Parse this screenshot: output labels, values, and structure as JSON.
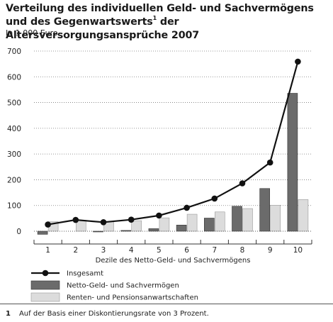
{
  "title_part1": "Verteilung des individuellen Geld- und Sachvermögens und des Gegenwartswerts",
  "title_sup": "1",
  "title_part2": " der Altersversorgungsansprüche 2007",
  "unit": "In 1 000 Euro",
  "footnote": {
    "number": "1",
    "text": "Auf der Basis einer Diskontierungsrate von 3 Prozent."
  },
  "colors": {
    "netto_bar": "#6b6b6b",
    "renten_bar": "#dcdcdc",
    "line": "#111111",
    "grid": "#777777"
  },
  "chart_data": {
    "type": "bar",
    "categories": [
      "1",
      "2",
      "3",
      "4",
      "5",
      "6",
      "7",
      "8",
      "9",
      "10"
    ],
    "xlabel": "Dezile des Netto-Geld- und Sachvermögens",
    "ylabel": "",
    "ylim": [
      -20,
      700
    ],
    "yticks": [
      0,
      100,
      200,
      300,
      400,
      500,
      600,
      700
    ],
    "grid": "horizontal dotted",
    "legend_position": "bottom-left",
    "series": [
      {
        "name": "Insgesamt",
        "kind": "line",
        "values": [
          26,
          44,
          35,
          45,
          61,
          91,
          127,
          186,
          267,
          659
        ]
      },
      {
        "name": "Netto-Geld- und Sachvermögen",
        "kind": "bar",
        "values": [
          -12,
          0,
          -2,
          3,
          10,
          24,
          51,
          97,
          166,
          536
        ]
      },
      {
        "name": "Renten- und Pensionsanwartschaften",
        "kind": "bar",
        "values": [
          37,
          43,
          37,
          41,
          52,
          66,
          75,
          88,
          101,
          123
        ]
      }
    ]
  }
}
